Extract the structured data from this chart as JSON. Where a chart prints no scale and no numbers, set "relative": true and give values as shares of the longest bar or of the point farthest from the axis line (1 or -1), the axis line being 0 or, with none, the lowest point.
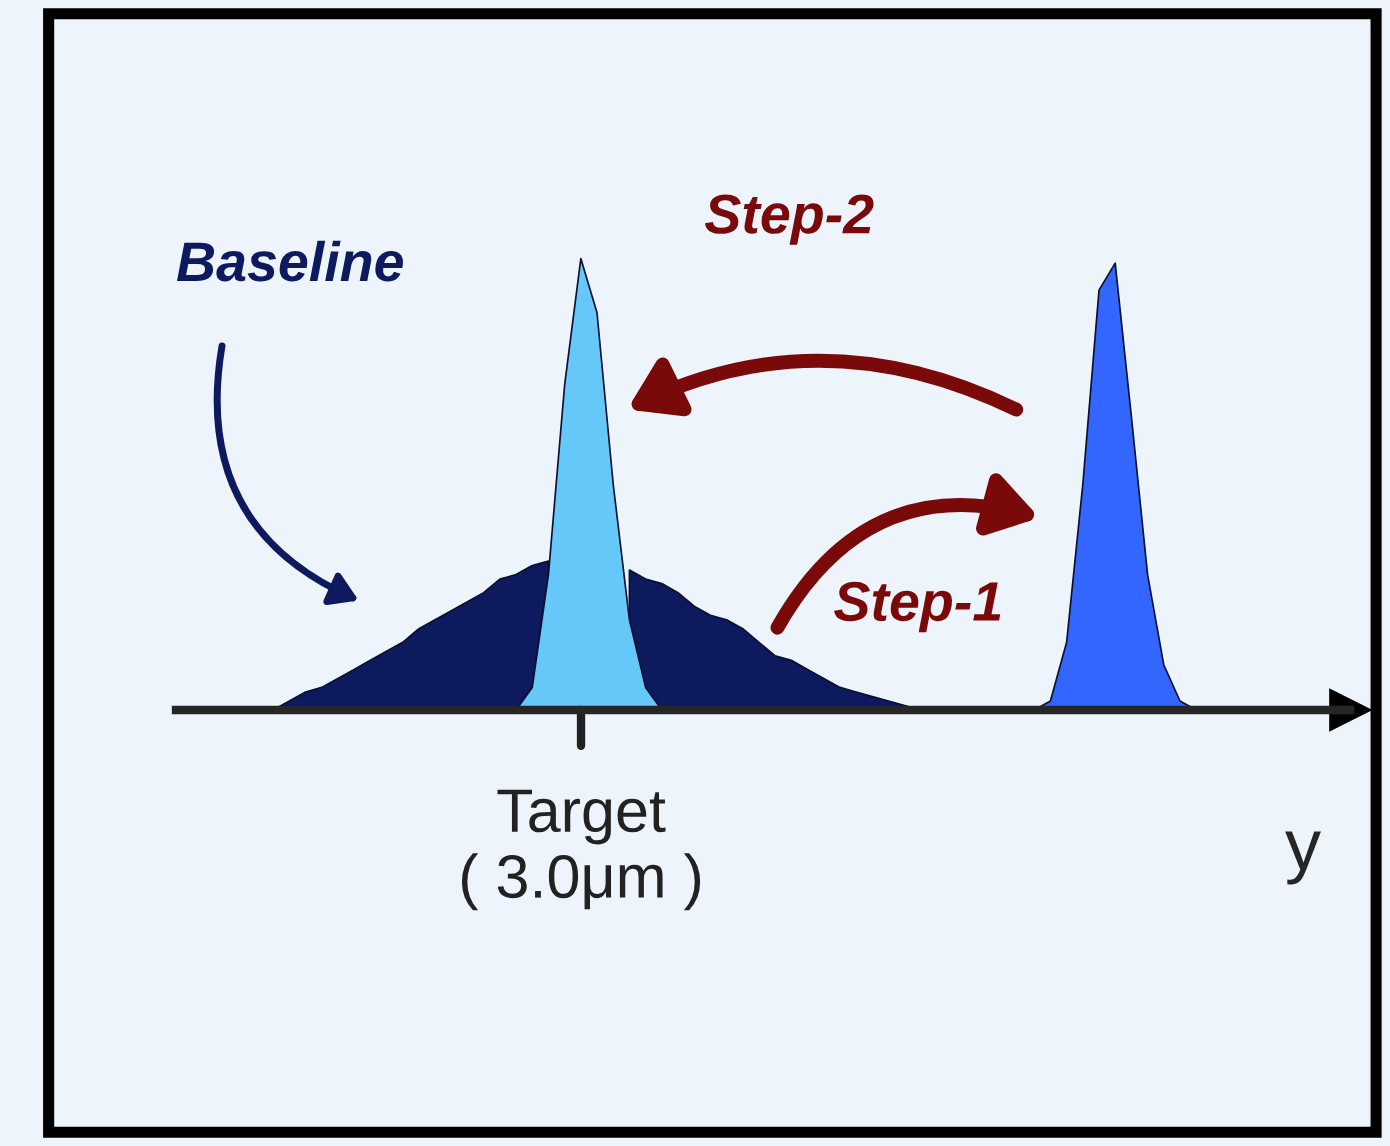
{
  "chart_data": {
    "type": "area",
    "relative": true,
    "xlabel": "y",
    "categories": [
      null,
      null,
      null,
      null,
      null,
      null,
      null,
      null,
      null,
      null,
      null,
      null,
      null,
      null,
      null,
      null,
      null,
      null,
      null,
      null,
      null,
      null,
      null,
      null,
      null,
      null,
      null,
      null,
      null,
      null,
      null,
      null,
      null,
      null,
      null,
      null,
      null,
      null,
      null,
      null,
      null,
      null,
      null,
      null,
      null,
      null,
      null,
      null,
      null,
      null,
      null,
      null,
      null,
      null,
      null,
      null,
      null,
      null,
      null,
      null
    ],
    "series": [
      {
        "name": "Baseline",
        "color": "#0d1a5e",
        "values": [
          0,
          0.02,
          0.04,
          0.05,
          0.07,
          0.09,
          0.11,
          0.13,
          0.15,
          0.18,
          0.2,
          0.22,
          0.24,
          0.26,
          0.29,
          0.3,
          0.32,
          0.33,
          null,
          null,
          null,
          null,
          0.31,
          0.29,
          0.28,
          0.26,
          0.23,
          0.21,
          0.2,
          0.18,
          0.15,
          0.12,
          0.11,
          0.09,
          0.07,
          0.05,
          0.04,
          0.03,
          0.02,
          0.01,
          0,
          0,
          0,
          0,
          0,
          0,
          0,
          0,
          0,
          0,
          0,
          0,
          0,
          0,
          0,
          0,
          0,
          0,
          0,
          0
        ]
      },
      {
        "color": "#66c8f8",
        "values": [
          0,
          0,
          0,
          0,
          0,
          0,
          0,
          0,
          0,
          0,
          0,
          0,
          0,
          0,
          0,
          0,
          0.05,
          0.3,
          0.72,
          1.0,
          0.88,
          0.5,
          0.2,
          0.05,
          0,
          0,
          0,
          0,
          0,
          0,
          0,
          0,
          0,
          0,
          0,
          0,
          0,
          0,
          0,
          0,
          0,
          0,
          0,
          0,
          0,
          0,
          0,
          0,
          0,
          0,
          0,
          0,
          0,
          0,
          0,
          0,
          0,
          0,
          0,
          0
        ]
      },
      {
        "color": "#3366ff",
        "values": [
          0,
          0,
          0,
          0,
          0,
          0,
          0,
          0,
          0,
          0,
          0,
          0,
          0,
          0,
          0,
          0,
          0,
          0,
          0,
          0,
          0,
          0,
          0,
          0,
          0,
          0,
          0,
          0,
          0,
          0,
          0,
          0,
          0,
          0,
          0,
          0,
          0,
          0,
          0,
          0,
          0,
          0,
          0,
          0,
          0,
          0,
          0,
          0,
          0.02,
          0.15,
          0.5,
          0.93,
          0.99,
          0.65,
          0.3,
          0.1,
          0.02,
          0,
          0,
          0
        ]
      }
    ],
    "annotations": [
      "Step-2",
      "Step-1",
      "Target\n( 3.0μm )"
    ]
  }
}
